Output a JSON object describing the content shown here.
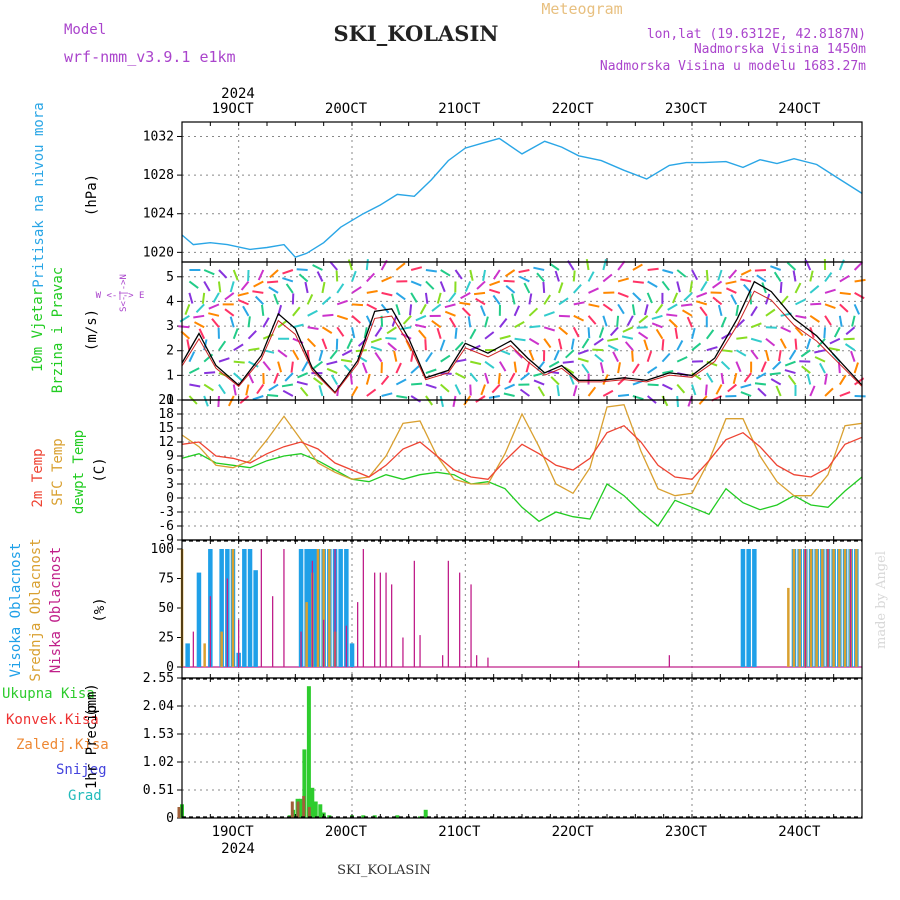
{
  "header": {
    "title": "SKI_KOLASIN",
    "meteogram_label": "Meteogram",
    "model_label": "Model",
    "model_name": "wrf-nmm_v3.9.1 e1km",
    "lonlat": "lon,lat (19.6312E, 42.8187N)",
    "elevation": "Nadmorska Visina 1450m",
    "model_elevation": "Nadmorska Visina u modelu 1683.27m",
    "footer_station": "SKI_KOLASIN",
    "watermark": "made by Angel"
  },
  "colors": {
    "pressure": "#2aa6e6",
    "wind_label": "#22cc22",
    "temp_2m": "#ee4433",
    "temp_sfc": "#d9a030",
    "dewpoint": "#22cc22",
    "cloud_high": "#1fa0e8",
    "cloud_mid": "#d9a030",
    "cloud_low": "#c0208a",
    "precip_total": "#2ecc2e",
    "precip_conv": "#ee3333",
    "precip_frz": "#ee8833",
    "precip_snow": "#4444dd",
    "precip_grad": "#22bbbb",
    "model_purple": "#aa44cc"
  },
  "chart_data": [
    {
      "type": "line",
      "panel": "pressure",
      "ylabel": "Pritisak na nivou mora",
      "unit": "(hPa)",
      "yticks": [
        "1020",
        "1024",
        "1028",
        "1032"
      ],
      "ylim": [
        1019,
        1033.5
      ],
      "x_days": [
        18.5,
        18.6,
        18.75,
        18.9,
        19.1,
        19.25,
        19.4,
        19.5,
        19.6,
        19.75,
        19.9,
        20.1,
        20.25,
        20.4,
        20.55,
        20.7,
        20.85,
        21.0,
        21.15,
        21.3,
        21.5,
        21.7,
        21.85,
        22.0,
        22.2,
        22.4,
        22.6,
        22.8,
        22.95,
        23.1,
        23.3,
        23.45,
        23.6,
        23.75,
        23.9,
        24.1,
        24.3,
        24.5
      ],
      "values": [
        1021.8,
        1020.8,
        1021.0,
        1020.8,
        1020.3,
        1020.5,
        1020.8,
        1019.5,
        1019.9,
        1021.0,
        1022.6,
        1024.0,
        1024.9,
        1026.0,
        1025.8,
        1027.5,
        1029.5,
        1030.8,
        1031.3,
        1031.8,
        1030.2,
        1031.5,
        1030.9,
        1030.0,
        1029.5,
        1028.5,
        1027.6,
        1029.0,
        1029.3,
        1029.3,
        1029.4,
        1028.8,
        1029.6,
        1029.2,
        1029.7,
        1029.1,
        1027.6,
        1026.1
      ]
    },
    {
      "type": "line",
      "panel": "wind",
      "ylabel": "10m Vjetar Brzina i Pravac",
      "unit": "(m/s)",
      "compass_label": "W <-|-> E",
      "compass_vertical": "S<-|->N",
      "yticks": [
        "0",
        "1",
        "2",
        "3",
        "4",
        "5"
      ],
      "ylim": [
        0,
        5.6
      ],
      "x_days": [
        18.5,
        18.65,
        18.8,
        19.0,
        19.2,
        19.35,
        19.5,
        19.65,
        19.85,
        20.05,
        20.2,
        20.35,
        20.5,
        20.65,
        20.85,
        21.0,
        21.2,
        21.4,
        21.55,
        21.7,
        21.85,
        22.0,
        22.2,
        22.4,
        22.6,
        22.8,
        23.0,
        23.2,
        23.4,
        23.55,
        23.7,
        23.9,
        24.1,
        24.3,
        24.5
      ],
      "values": [
        1.5,
        2.7,
        1.4,
        0.6,
        1.8,
        3.5,
        2.9,
        1.3,
        0.3,
        1.6,
        3.6,
        3.7,
        2.5,
        0.9,
        1.2,
        2.3,
        1.9,
        2.4,
        1.7,
        1.1,
        1.4,
        0.8,
        0.8,
        0.9,
        0.8,
        1.1,
        1.0,
        1.7,
        3.3,
        4.8,
        4.4,
        3.3,
        2.6,
        1.6,
        0.6
      ]
    },
    {
      "type": "line",
      "panel": "temperature",
      "ylabel": "2m Temp / SFC Temp / dewpt Temp",
      "unit": "(C)",
      "yticks": [
        "-9",
        "-6",
        "-3",
        "0",
        "3",
        "6",
        "9",
        "12",
        "15",
        "18",
        "21"
      ],
      "ylim": [
        -9,
        21
      ],
      "x_days": [
        18.5,
        18.65,
        18.8,
        18.95,
        19.1,
        19.25,
        19.4,
        19.55,
        19.7,
        19.85,
        20.0,
        20.15,
        20.3,
        20.45,
        20.6,
        20.75,
        20.9,
        21.05,
        21.2,
        21.35,
        21.5,
        21.65,
        21.8,
        21.95,
        22.1,
        22.25,
        22.4,
        22.55,
        22.7,
        22.85,
        23.0,
        23.15,
        23.3,
        23.45,
        23.6,
        23.75,
        23.9,
        24.05,
        24.2,
        24.35,
        24.5
      ],
      "series": [
        {
          "name": "2m Temp",
          "values": [
            11.5,
            12.0,
            9.0,
            8.5,
            7.5,
            9.5,
            11.0,
            12.0,
            10.5,
            7.5,
            6.0,
            4.5,
            7.0,
            10.5,
            12.0,
            9.0,
            6.0,
            4.5,
            4.0,
            8.0,
            11.5,
            9.5,
            7.0,
            6.0,
            8.5,
            14.0,
            15.5,
            12.0,
            7.0,
            4.5,
            4.0,
            8.0,
            12.5,
            14.0,
            11.0,
            7.0,
            5.0,
            4.5,
            6.5,
            11.5,
            13.0
          ]
        },
        {
          "name": "SFC Temp",
          "values": [
            13.5,
            11.0,
            7.0,
            6.5,
            8.0,
            12.5,
            17.5,
            12.5,
            7.5,
            5.5,
            4.0,
            4.5,
            9.0,
            16.0,
            16.5,
            9.0,
            4.0,
            3.0,
            3.0,
            9.5,
            18.0,
            11.0,
            3.0,
            1.0,
            6.5,
            19.5,
            20.0,
            10.0,
            2.0,
            0.5,
            1.0,
            8.0,
            17.0,
            17.0,
            9.0,
            3.5,
            0.5,
            0.5,
            5.0,
            15.5,
            16.0
          ]
        },
        {
          "name": "dewpt Temp",
          "values": [
            8.5,
            9.5,
            7.5,
            7.0,
            6.5,
            8.0,
            9.0,
            9.5,
            8.0,
            6.0,
            4.0,
            3.5,
            5.0,
            4.0,
            5.0,
            5.5,
            5.0,
            3.0,
            3.5,
            2.0,
            -2.0,
            -5.0,
            -3.0,
            -4.0,
            -4.5,
            3.0,
            0.5,
            -3.0,
            -6.0,
            -0.5,
            -2.0,
            -3.5,
            2.0,
            -1.0,
            -2.5,
            -1.5,
            0.5,
            -1.5,
            -2.0,
            1.5,
            4.5
          ]
        }
      ]
    },
    {
      "type": "bar",
      "panel": "clouds",
      "ylabel": "Visoka Oblacnost / Srednja Oblacnost / Niska Oblacnost",
      "unit": "(%)",
      "yticks": [
        "0",
        "25",
        "50",
        "75",
        "100"
      ],
      "ylim": [
        0,
        100
      ],
      "series": [
        {
          "name": "Visoka Oblacnost",
          "x_days": [
            18.55,
            18.65,
            18.75,
            18.85,
            18.9,
            18.95,
            19.0,
            19.05,
            19.1,
            19.15,
            19.55,
            19.6,
            19.62,
            19.65,
            19.68,
            19.7,
            19.75,
            19.8,
            19.85,
            19.9,
            19.95,
            20.0,
            23.45,
            23.5,
            23.55,
            23.9,
            23.95,
            24.0,
            24.05,
            24.1,
            24.15,
            24.2,
            24.25,
            24.3,
            24.35,
            24.4,
            24.45
          ],
          "values": [
            20,
            80,
            100,
            100,
            100,
            100,
            12,
            100,
            100,
            82,
            100,
            100,
            100,
            100,
            100,
            100,
            100,
            100,
            100,
            100,
            100,
            20,
            100,
            100,
            100,
            100,
            100,
            100,
            100,
            100,
            100,
            100,
            100,
            100,
            100,
            100,
            100
          ]
        },
        {
          "name": "Srednja Oblacnost",
          "x_days": [
            18.5,
            18.7,
            18.85,
            18.95,
            19.6,
            19.65,
            19.7,
            19.75,
            19.8,
            19.85,
            23.85,
            23.9,
            23.95,
            24.0,
            24.05,
            24.1,
            24.15,
            24.2,
            24.25,
            24.3,
            24.35,
            24.4,
            24.45
          ],
          "values": [
            100,
            20,
            30,
            100,
            55,
            80,
            100,
            100,
            100,
            30,
            67,
            100,
            100,
            100,
            100,
            100,
            100,
            100,
            100,
            100,
            100,
            100,
            100
          ]
        },
        {
          "name": "Niska Oblacnost",
          "x_days": [
            18.6,
            18.75,
            18.9,
            19.0,
            19.2,
            19.3,
            19.4,
            19.55,
            19.65,
            19.75,
            19.85,
            19.95,
            20.05,
            20.1,
            20.2,
            20.25,
            20.3,
            20.35,
            20.45,
            20.55,
            20.6,
            20.8,
            20.85,
            20.95,
            21.05,
            21.1,
            21.2,
            22.0,
            22.8,
            24.0,
            24.2,
            24.4
          ],
          "values": [
            30,
            60,
            75,
            40,
            100,
            60,
            100,
            30,
            90,
            40,
            100,
            35,
            55,
            100,
            80,
            80,
            80,
            70,
            25,
            90,
            27,
            10,
            90,
            80,
            70,
            10,
            8,
            5,
            10,
            100,
            100,
            100
          ]
        }
      ]
    },
    {
      "type": "bar",
      "panel": "precipitation",
      "ylabel": "1hr Precip",
      "unit": "(mm)",
      "yticks": [
        "0",
        "0.51",
        "1.02",
        "1.53",
        "2.04",
        "2.55"
      ],
      "ylim": [
        0,
        2.55
      ],
      "legend": [
        "Ukupna Kisa",
        "Konvek.Kisa",
        "Zaledj.Kisa",
        "Snijeg",
        "Grad"
      ],
      "series": [
        {
          "name": "Ukupna Kisa",
          "x_days": [
            18.5,
            19.45,
            19.48,
            19.52,
            19.55,
            19.58,
            19.62,
            19.65,
            19.68,
            19.72,
            19.75,
            19.8,
            20.0,
            20.1,
            20.2,
            20.4,
            20.6,
            20.65
          ],
          "values": [
            0.25,
            0.05,
            0.15,
            0.35,
            0.35,
            1.25,
            2.4,
            0.55,
            0.3,
            0.25,
            0.1,
            0.05,
            0.05,
            0.05,
            0.05,
            0.05,
            0.03,
            0.15
          ]
        },
        {
          "name": "Konvek.Kisa",
          "x_days": [
            18.5,
            19.5,
            19.55,
            19.6,
            19.65
          ],
          "values": [
            0.2,
            0.3,
            0.3,
            0.4,
            0.2
          ]
        }
      ]
    }
  ],
  "x_axis": {
    "top_year": "2024",
    "bottom_year": "2024",
    "day_labels": [
      "19OCT",
      "20OCT",
      "21OCT",
      "22OCT",
      "23OCT",
      "24OCT"
    ]
  }
}
